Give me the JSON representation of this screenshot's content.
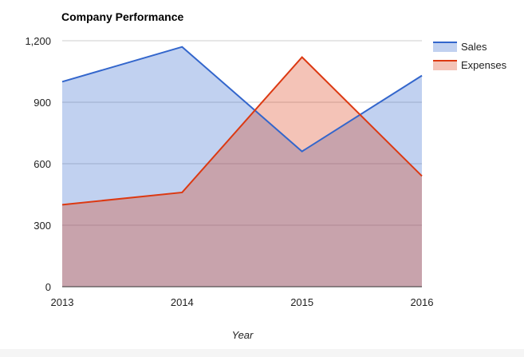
{
  "chart_data": {
    "type": "area",
    "title": "Company Performance",
    "xlabel": "Year",
    "ylabel": "",
    "categories": [
      "2013",
      "2014",
      "2015",
      "2016"
    ],
    "series": [
      {
        "name": "Sales",
        "values": [
          1000,
          1170,
          660,
          1030
        ],
        "color": "#3366cc"
      },
      {
        "name": "Expenses",
        "values": [
          400,
          460,
          1120,
          540
        ],
        "color": "#dc3912"
      }
    ],
    "ylim": [
      0,
      1200
    ],
    "yticks": [
      0,
      300,
      600,
      900,
      1200
    ],
    "ytick_labels": [
      "0",
      "300",
      "600",
      "900",
      "1,200"
    ],
    "grid": true,
    "legend": "right"
  },
  "colors": {
    "fill_opacity": 0.3
  }
}
